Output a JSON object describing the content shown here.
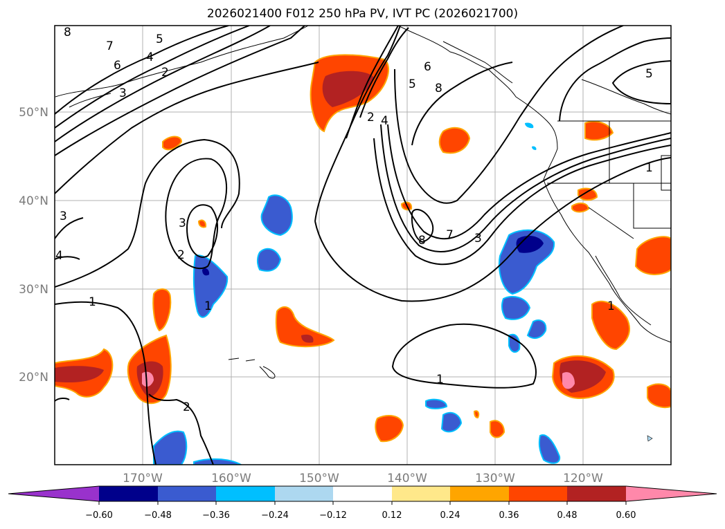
{
  "title": "2026021400 F012 250 hPa PV, IVT PC (2026021700)",
  "longitude_labels": [
    "170°W",
    "160°W",
    "150°W",
    "140°W",
    "130°W",
    "120°W"
  ],
  "latitude_labels": [
    "50°N",
    "40°N",
    "30°N",
    "20°N"
  ],
  "colorbar": {
    "ticks": [
      "−0.60",
      "−0.48",
      "−0.36",
      "−0.24",
      "−0.12",
      "0.12",
      "0.24",
      "0.36",
      "0.48",
      "0.60"
    ],
    "colors": [
      "#9932cc",
      "#00008b",
      "#3a5bd0",
      "#00bfff",
      "#add8f0",
      "#ffffff",
      "#ffe88a",
      "#ffa500",
      "#ff4500",
      "#b22222",
      "#ff88aa"
    ]
  },
  "contour_labels": [
    "8",
    "7",
    "6",
    "4",
    "2",
    "3",
    "3",
    "2",
    "1",
    "2",
    "5",
    "1",
    "2",
    "4",
    "5",
    "6",
    "8",
    "8",
    "7",
    "3",
    "1",
    "3",
    "4",
    "1",
    "1",
    "5"
  ]
}
